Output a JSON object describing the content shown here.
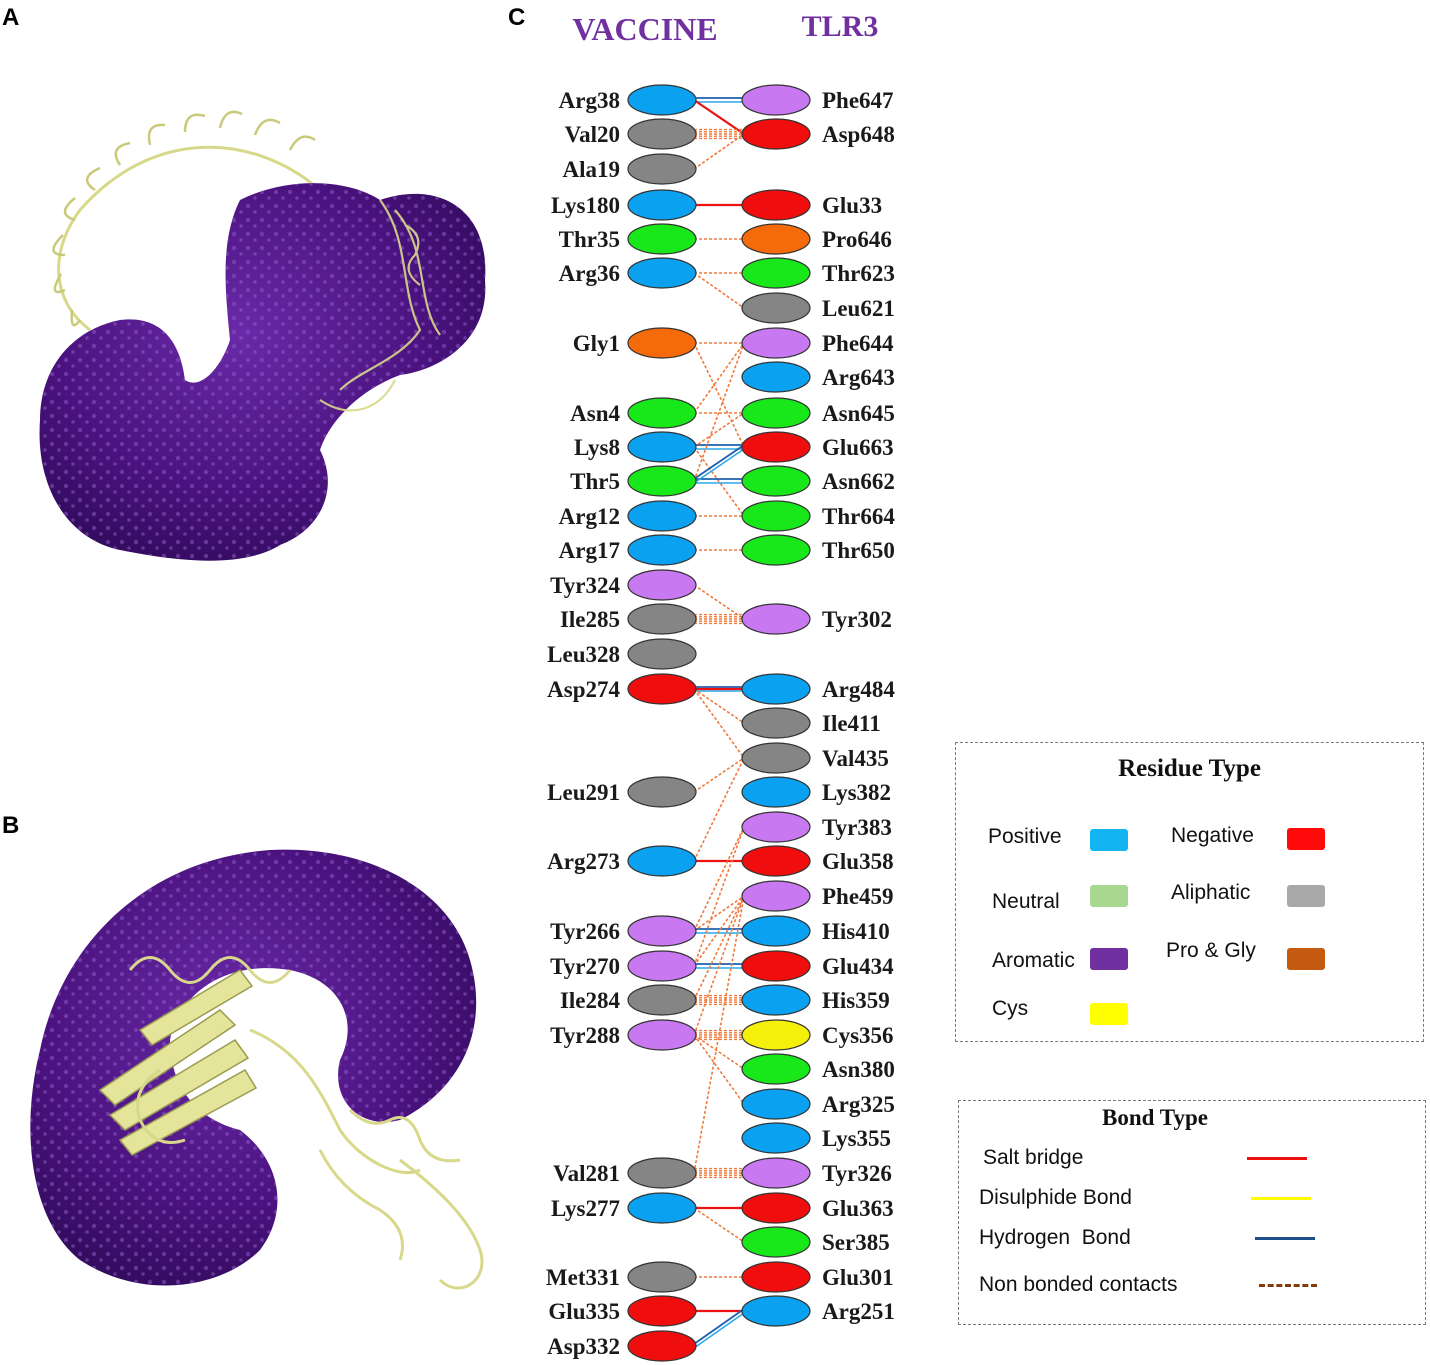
{
  "panels": {
    "a": "A",
    "b": "B",
    "c": "C"
  },
  "headers": {
    "vaccine": "VACCINE",
    "tlr3": "TLR3"
  },
  "type_colors": {
    "pos": "#0aa2f0",
    "neg": "#f00d0d",
    "neu": "#18e81a",
    "ali": "#858585",
    "aro": "#c878f0",
    "pg": "#f56a0a",
    "cys": "#f5f00a"
  },
  "bond_colors": {
    "salt": "#ee1111",
    "hbond": "#1f5fb0",
    "nonbond": "#f07a3c"
  },
  "vaccine_residues": [
    {
      "label": "Arg38",
      "type": "pos"
    },
    {
      "label": "Val20",
      "type": "ali"
    },
    {
      "label": "Ala19",
      "type": "ali"
    },
    {
      "label": "Lys180",
      "type": "pos"
    },
    {
      "label": "Thr35",
      "type": "neu"
    },
    {
      "label": "Arg36",
      "type": "pos"
    },
    {
      "label": "Gly1",
      "type": "pg"
    },
    {
      "label": "Asn4",
      "type": "neu"
    },
    {
      "label": "Lys8",
      "type": "pos"
    },
    {
      "label": "Thr5",
      "type": "neu"
    },
    {
      "label": "Arg12",
      "type": "pos"
    },
    {
      "label": "Arg17",
      "type": "pos"
    },
    {
      "label": "Tyr324",
      "type": "aro"
    },
    {
      "label": "Ile285",
      "type": "ali"
    },
    {
      "label": "Leu328",
      "type": "ali"
    },
    {
      "label": "Asp274",
      "type": "neg"
    },
    {
      "label": "Leu291",
      "type": "ali"
    },
    {
      "label": "Arg273",
      "type": "pos"
    },
    {
      "label": "Tyr266",
      "type": "aro"
    },
    {
      "label": "Tyr270",
      "type": "aro"
    },
    {
      "label": "Ile284",
      "type": "ali"
    },
    {
      "label": "Tyr288",
      "type": "aro"
    },
    {
      "label": "Val281",
      "type": "ali"
    },
    {
      "label": "Lys277",
      "type": "pos"
    },
    {
      "label": "Met331",
      "type": "ali"
    },
    {
      "label": "Glu335",
      "type": "neg"
    },
    {
      "label": "Asp332",
      "type": "neg"
    }
  ],
  "tlr3_residues": [
    {
      "label": "Phe647",
      "type": "aro"
    },
    {
      "label": "Asp648",
      "type": "neg"
    },
    {
      "label": "Glu33",
      "type": "neg"
    },
    {
      "label": "Pro646",
      "type": "pg"
    },
    {
      "label": "Thr623",
      "type": "neu"
    },
    {
      "label": "Leu621",
      "type": "ali"
    },
    {
      "label": "Phe644",
      "type": "aro"
    },
    {
      "label": "Arg643",
      "type": "pos"
    },
    {
      "label": "Asn645",
      "type": "neu"
    },
    {
      "label": "Glu663",
      "type": "neg"
    },
    {
      "label": "Asn662",
      "type": "neu"
    },
    {
      "label": "Thr664",
      "type": "neu"
    },
    {
      "label": "Thr650",
      "type": "neu"
    },
    {
      "label": "Tyr302",
      "type": "aro"
    },
    {
      "label": "Arg484",
      "type": "pos"
    },
    {
      "label": "Ile411",
      "type": "ali"
    },
    {
      "label": "Val435",
      "type": "ali"
    },
    {
      "label": "Lys382",
      "type": "pos"
    },
    {
      "label": "Tyr383",
      "type": "aro"
    },
    {
      "label": "Glu358",
      "type": "neg"
    },
    {
      "label": "Phe459",
      "type": "aro"
    },
    {
      "label": "His410",
      "type": "pos"
    },
    {
      "label": "Glu434",
      "type": "neg"
    },
    {
      "label": "His359",
      "type": "pos"
    },
    {
      "label": "Cys356",
      "type": "cys"
    },
    {
      "label": "Asn380",
      "type": "neu"
    },
    {
      "label": "Arg325",
      "type": "pos"
    },
    {
      "label": "Lys355",
      "type": "pos"
    },
    {
      "label": "Tyr326",
      "type": "aro"
    },
    {
      "label": "Glu363",
      "type": "neg"
    },
    {
      "label": "Ser385",
      "type": "neu"
    },
    {
      "label": "Glu301",
      "type": "neg"
    },
    {
      "label": "Arg251",
      "type": "pos"
    }
  ],
  "interactions": [
    {
      "from": "Arg38",
      "to": "Phe647",
      "kind": "hbond"
    },
    {
      "from": "Arg38",
      "to": "Asp648",
      "kind": "salt"
    },
    {
      "from": "Val20",
      "to": "Asp648",
      "kind": "nonbond_many"
    },
    {
      "from": "Ala19",
      "to": "Asp648",
      "kind": "nonbond"
    },
    {
      "from": "Lys180",
      "to": "Glu33",
      "kind": "salt"
    },
    {
      "from": "Thr35",
      "to": "Pro646",
      "kind": "nonbond"
    },
    {
      "from": "Arg36",
      "to": "Thr623",
      "kind": "nonbond"
    },
    {
      "from": "Arg36",
      "to": "Leu621",
      "kind": "nonbond"
    },
    {
      "from": "Gly1",
      "to": "Phe644",
      "kind": "nonbond"
    },
    {
      "from": "Gly1",
      "to": "Glu663",
      "kind": "nonbond"
    },
    {
      "from": "Asn4",
      "to": "Phe644",
      "kind": "nonbond"
    },
    {
      "from": "Asn4",
      "to": "Asn645",
      "kind": "nonbond"
    },
    {
      "from": "Lys8",
      "to": "Glu663",
      "kind": "hbond"
    },
    {
      "from": "Lys8",
      "to": "Asn645",
      "kind": "nonbond"
    },
    {
      "from": "Lys8",
      "to": "Thr664",
      "kind": "nonbond"
    },
    {
      "from": "Thr5",
      "to": "Asn662",
      "kind": "hbond"
    },
    {
      "from": "Thr5",
      "to": "Glu663",
      "kind": "hbond"
    },
    {
      "from": "Thr5",
      "to": "Phe644",
      "kind": "nonbond"
    },
    {
      "from": "Arg12",
      "to": "Thr664",
      "kind": "nonbond"
    },
    {
      "from": "Arg17",
      "to": "Thr650",
      "kind": "nonbond"
    },
    {
      "from": "Tyr324",
      "to": "Tyr302",
      "kind": "nonbond"
    },
    {
      "from": "Ile285",
      "to": "Tyr302",
      "kind": "nonbond_many"
    },
    {
      "from": "Asp274",
      "to": "Arg484",
      "kind": "hbond"
    },
    {
      "from": "Asp274",
      "to": "Arg484",
      "kind": "salt"
    },
    {
      "from": "Asp274",
      "to": "Ile411",
      "kind": "nonbond"
    },
    {
      "from": "Asp274",
      "to": "Val435",
      "kind": "nonbond"
    },
    {
      "from": "Leu291",
      "to": "Val435",
      "kind": "nonbond"
    },
    {
      "from": "Arg273",
      "to": "Glu358",
      "kind": "salt"
    },
    {
      "from": "Arg273",
      "to": "Val435",
      "kind": "nonbond"
    },
    {
      "from": "Tyr266",
      "to": "His410",
      "kind": "hbond"
    },
    {
      "from": "Tyr266",
      "to": "Tyr383",
      "kind": "nonbond"
    },
    {
      "from": "Tyr266",
      "to": "Phe459",
      "kind": "nonbond"
    },
    {
      "from": "Tyr270",
      "to": "Glu434",
      "kind": "hbond"
    },
    {
      "from": "Tyr270",
      "to": "Phe459",
      "kind": "nonbond"
    },
    {
      "from": "Tyr270",
      "to": "Tyr383",
      "kind": "nonbond"
    },
    {
      "from": "Ile284",
      "to": "His359",
      "kind": "nonbond_many"
    },
    {
      "from": "Ile284",
      "to": "Phe459",
      "kind": "nonbond"
    },
    {
      "from": "Tyr288",
      "to": "Cys356",
      "kind": "nonbond_many"
    },
    {
      "from": "Tyr288",
      "to": "Asn380",
      "kind": "nonbond"
    },
    {
      "from": "Tyr288",
      "to": "Arg325",
      "kind": "nonbond"
    },
    {
      "from": "Tyr288",
      "to": "Phe459",
      "kind": "nonbond"
    },
    {
      "from": "Val281",
      "to": "Tyr326",
      "kind": "nonbond_many"
    },
    {
      "from": "Val281",
      "to": "Phe459",
      "kind": "nonbond"
    },
    {
      "from": "Lys277",
      "to": "Glu363",
      "kind": "salt"
    },
    {
      "from": "Lys277",
      "to": "Ser385",
      "kind": "nonbond"
    },
    {
      "from": "Met331",
      "to": "Glu301",
      "kind": "nonbond"
    },
    {
      "from": "Glu335",
      "to": "Arg251",
      "kind": "salt"
    },
    {
      "from": "Asp332",
      "to": "Arg251",
      "kind": "hbond"
    }
  ],
  "legend_residue": {
    "title": "Residue Type",
    "items": [
      {
        "label": "Positive",
        "color": "#14b4f0"
      },
      {
        "label": "Negative",
        "color": "#ff0a0a"
      },
      {
        "label": "Neutral",
        "color": "#a8d890"
      },
      {
        "label": "Aliphatic",
        "color": "#a8a8a8"
      },
      {
        "label": "Aromatic",
        "color": "#7030a0"
      },
      {
        "label": "Pro & Gly",
        "color": "#c55a11"
      },
      {
        "label": "Cys",
        "color": "#ffff00"
      }
    ]
  },
  "legend_bond": {
    "title": "Bond Type",
    "items": [
      {
        "label": "Salt bridge",
        "color": "#ee1111",
        "style": "solid"
      },
      {
        "label": "Disulphide Bond",
        "color": "#ffff00",
        "style": "solid"
      },
      {
        "label": "Hydrogen  Bond",
        "color": "#1f4e8c",
        "style": "solid"
      },
      {
        "label": "Non bonded contacts",
        "color": "#843c0c",
        "style": "dashed"
      }
    ]
  }
}
